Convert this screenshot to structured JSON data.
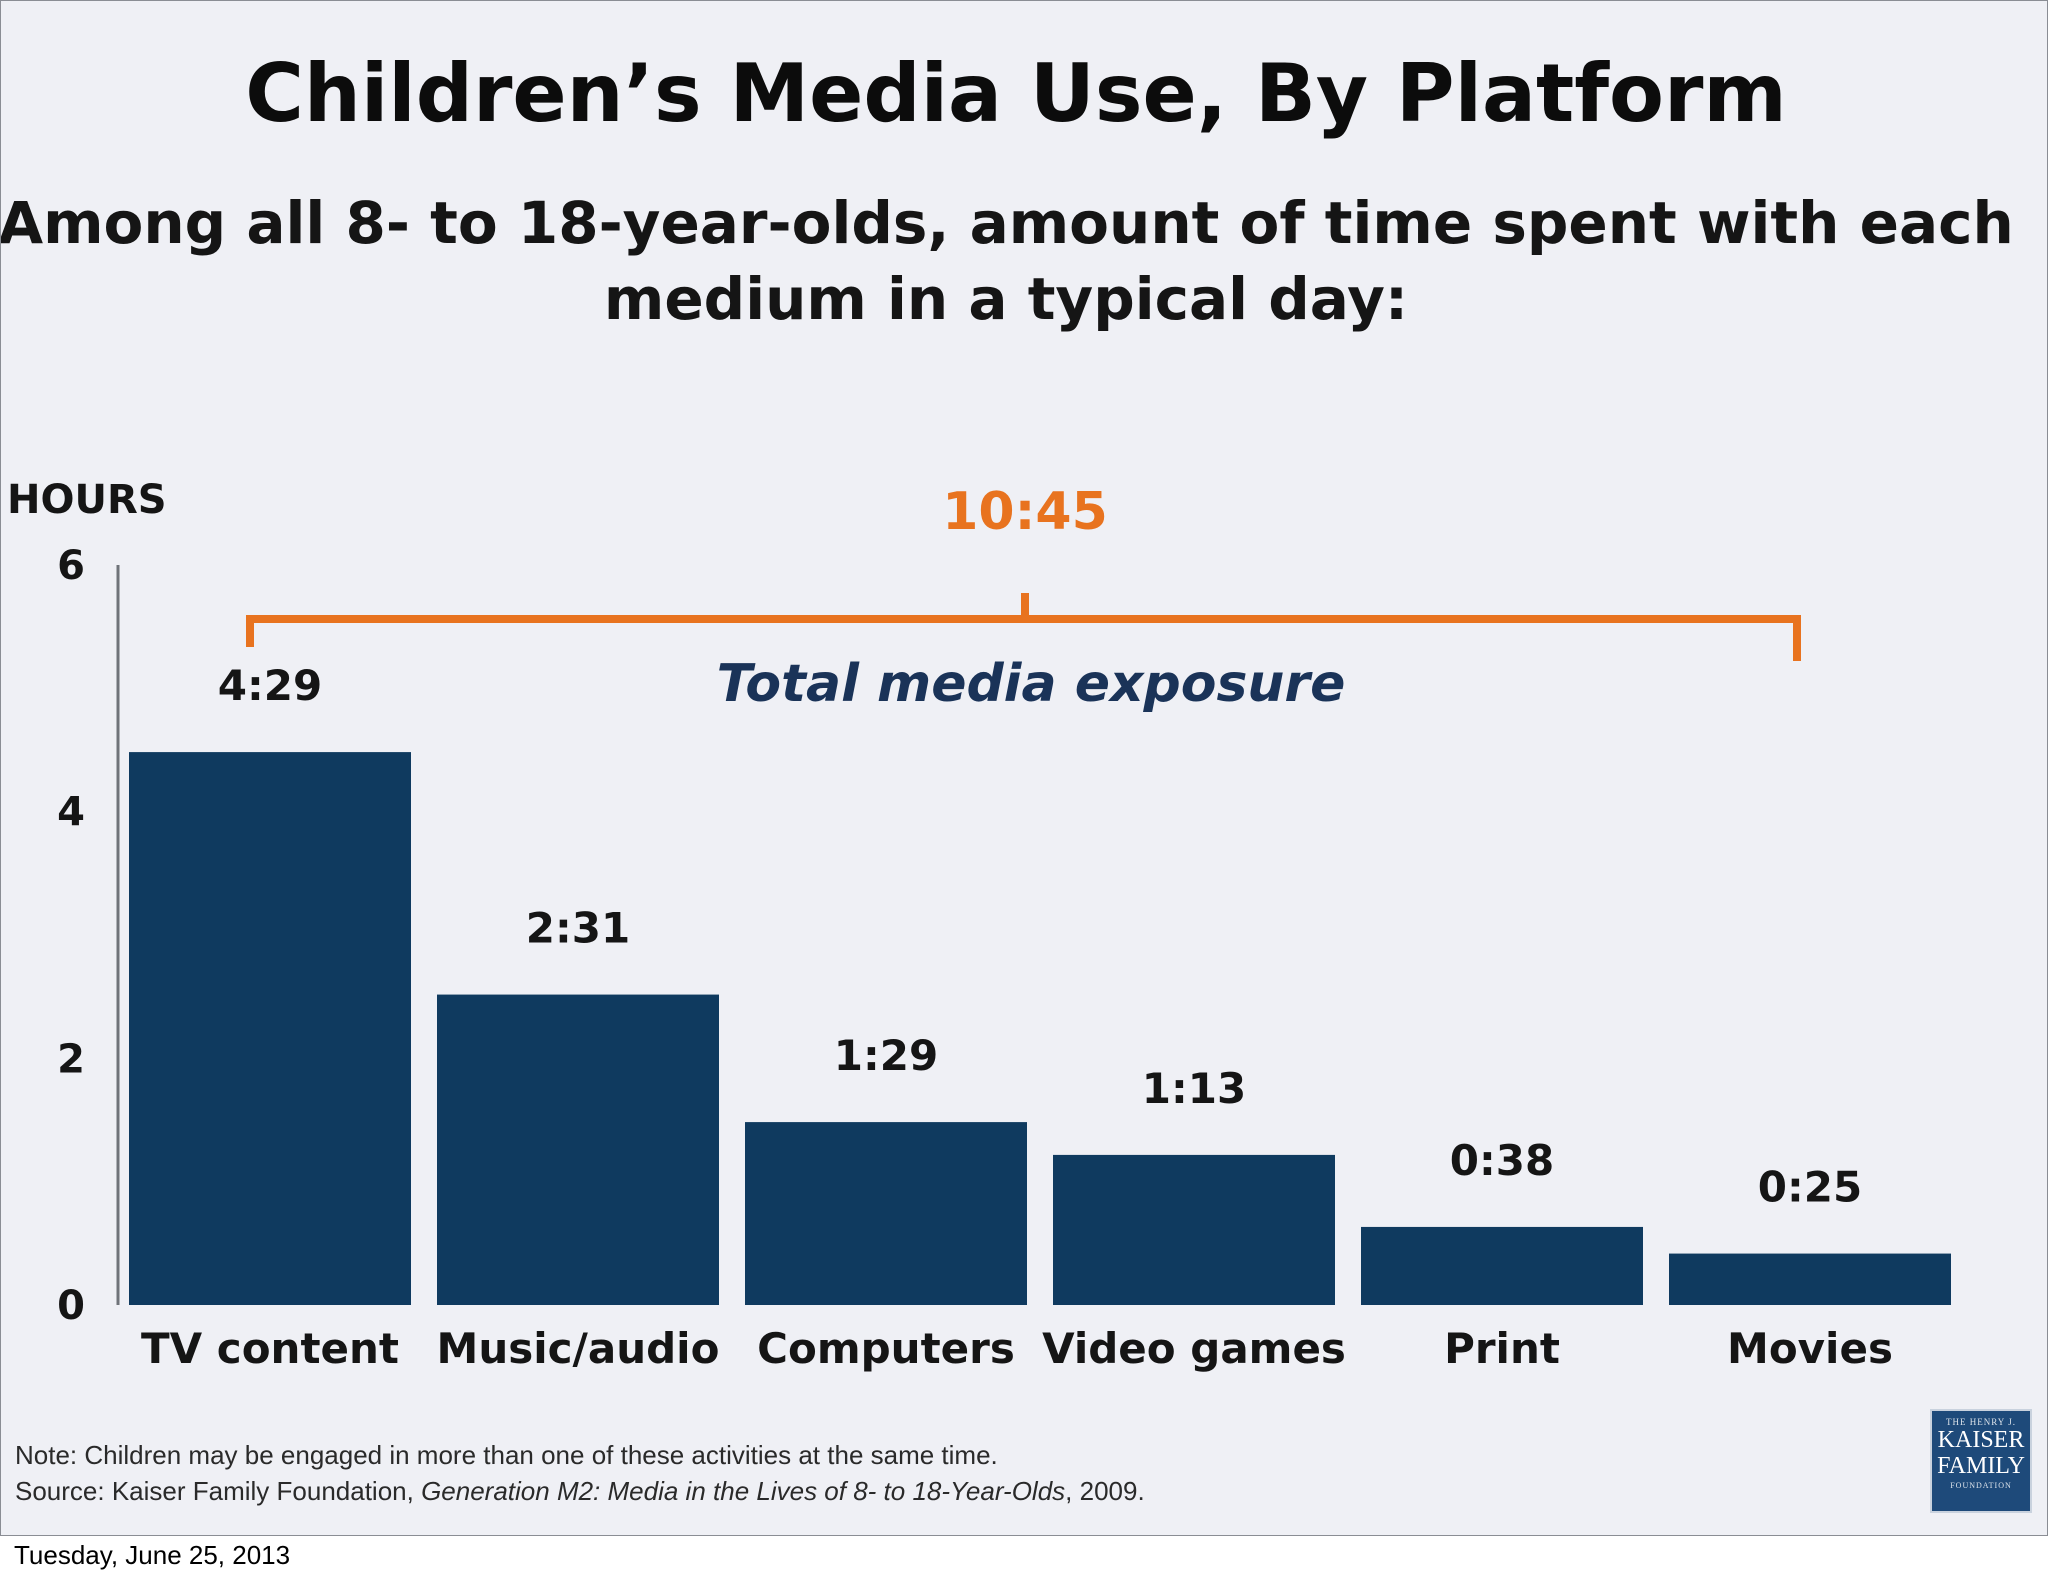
{
  "slide": {
    "date": "Tuesday, June 25, 2013"
  },
  "logo": {
    "line1": "THE HENRY J.",
    "line2": "KAISER",
    "line3": "FAMILY",
    "line4": "FOUNDATION"
  },
  "footnotes": {
    "note": "Note: Children may be engaged in more than one of these activities at the same time.",
    "source_prefix": "Source: Kaiser Family Foundation, ",
    "source_title": "Generation M2: Media in the Lives of 8- to 18-Year-Olds",
    "source_suffix": ", 2009."
  },
  "chart_data": {
    "type": "bar",
    "title": "Children’s Media Use, By Platform",
    "subtitle_line1": "Among all 8- to 18-year-olds, amount of time spent with each",
    "subtitle_line2": "medium in a typical day:",
    "ylabel": "HOURS",
    "xlabel": "",
    "ylim": [
      0,
      6
    ],
    "yticks": [
      0,
      2,
      4,
      6
    ],
    "categories": [
      "TV content",
      "Music/audio",
      "Computers",
      "Video games",
      "Print",
      "Movies"
    ],
    "values": [
      4.483,
      2.517,
      1.483,
      1.217,
      0.633,
      0.417
    ],
    "value_labels": [
      "4:29",
      "2:31",
      "1:29",
      "1:13",
      "0:38",
      "0:25"
    ],
    "total_label": "10:45",
    "total_caption": "Total media exposure",
    "bar_color": "#0f3a5f",
    "accent_color": "#e8731f",
    "grid": false
  }
}
